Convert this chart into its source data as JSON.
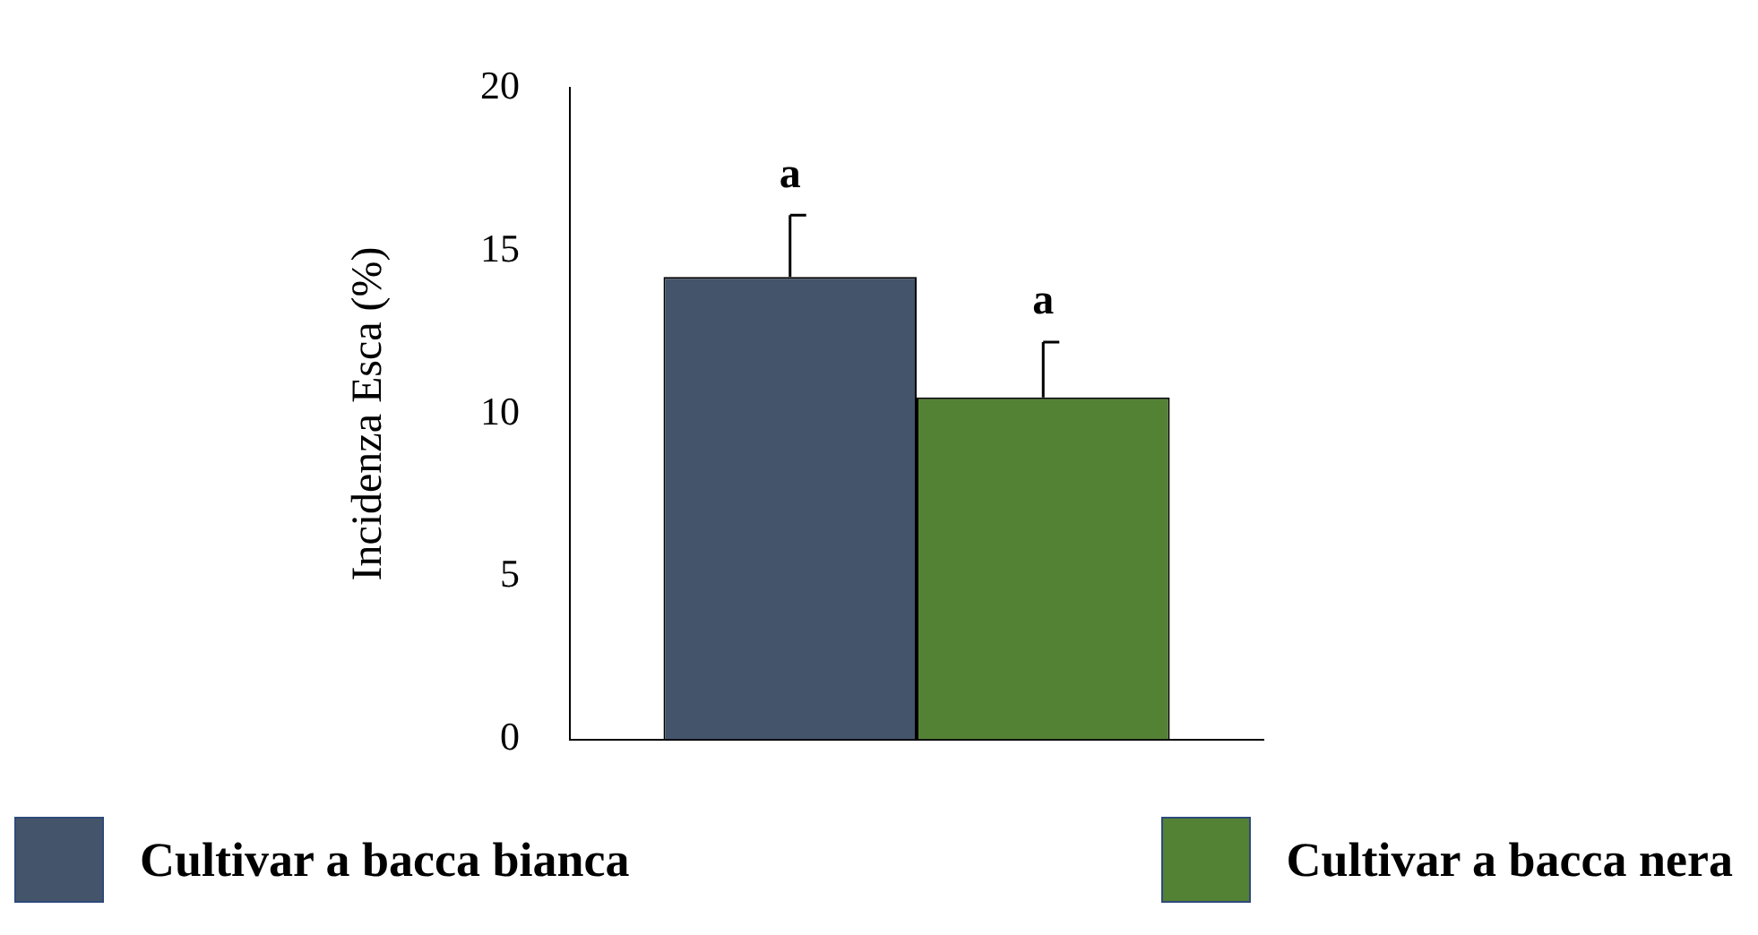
{
  "chart_data": {
    "type": "bar",
    "ylabel": "Incidenza Esca (%)",
    "categories": [
      null
    ],
    "ylim": [
      0,
      20
    ],
    "yticks": [
      0,
      5,
      10,
      15,
      20
    ],
    "grid": false,
    "legend": "bottom",
    "series": [
      {
        "name": "Cultivar a bacca bianca",
        "color": "#44546a",
        "values": [
          14.2
        ],
        "errors": [
          [
            14.2,
            16.1
          ]
        ]
      },
      {
        "name": "Cultivar a bacca nera",
        "color": "#548235",
        "values": [
          10.5
        ],
        "errors": [
          [
            10.5,
            12.2
          ]
        ]
      }
    ],
    "annotations": [
      "a",
      "a"
    ]
  }
}
